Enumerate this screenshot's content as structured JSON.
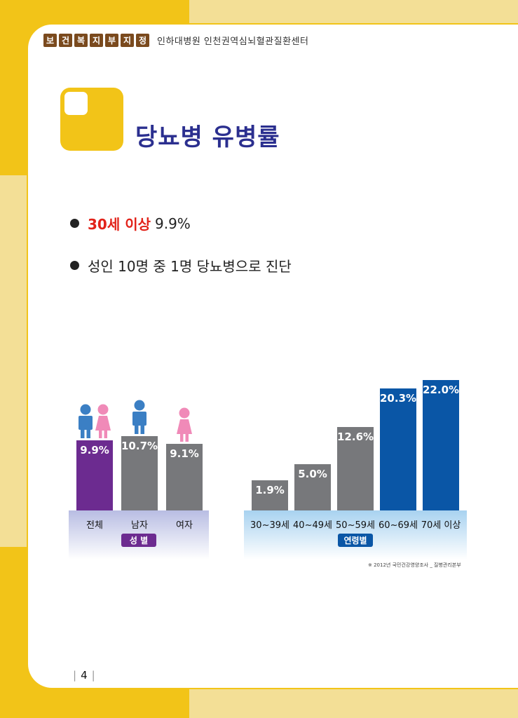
{
  "header": {
    "chips": [
      "보",
      "건",
      "복",
      "지",
      "부",
      "지",
      "정"
    ],
    "text": "인하대병원 인천권역심뇌혈관질환센터"
  },
  "title": "당뇨병 유병률",
  "bullets": [
    {
      "highlight": "30세 이상",
      "text": "9.9%"
    },
    {
      "highlight": "",
      "text": "성인 10명 중 1명 당뇨병으로 진단"
    }
  ],
  "colors": {
    "purple": "#6c2b90",
    "gray": "#77787b",
    "blue": "#0a56a6",
    "yellow": "#f2c418",
    "title": "#2b2f8f"
  },
  "chart_data": [
    {
      "type": "bar",
      "group_label": "성 별",
      "categories": [
        "전체",
        "남자",
        "여자"
      ],
      "values": [
        9.9,
        10.7,
        9.1
      ],
      "value_labels": [
        "9.9%",
        "10.7%",
        "9.1%"
      ],
      "bar_colors": [
        "#6c2b90",
        "#77787b",
        "#77787b"
      ],
      "icons": [
        "man-woman-icon",
        "man-icon",
        "woman-icon"
      ]
    },
    {
      "type": "bar",
      "group_label": "연령별",
      "categories": [
        "30~39세",
        "40~49세",
        "50~59세",
        "60~69세",
        "70세 이상"
      ],
      "values": [
        1.9,
        5.0,
        12.6,
        20.3,
        22.0
      ],
      "value_labels": [
        "1.9%",
        "5.0%",
        "12.6%",
        "20.3%",
        "22.0%"
      ],
      "bar_colors": [
        "#77787b",
        "#77787b",
        "#77787b",
        "#0a56a6",
        "#0a56a6"
      ]
    }
  ],
  "source": "※ 2012년 국민건강영양조사 _ 질병관리본부",
  "page_number": "4"
}
